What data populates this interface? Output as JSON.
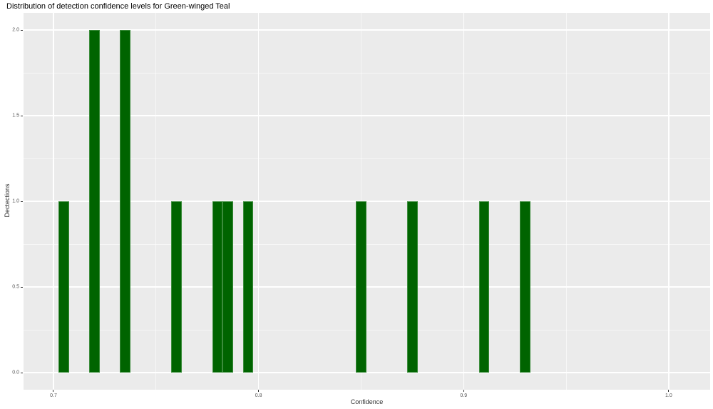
{
  "chart_data": {
    "type": "bar",
    "subtype": "histogram",
    "title": "Distribution of detection confidence levels for Green-winged Teal",
    "xlabel": "Confidence",
    "ylabel": "Dectections",
    "bin_width": 0.005,
    "bins": [
      {
        "center": 0.705,
        "count": 1
      },
      {
        "center": 0.72,
        "count": 2
      },
      {
        "center": 0.735,
        "count": 2
      },
      {
        "center": 0.76,
        "count": 1
      },
      {
        "center": 0.78,
        "count": 1
      },
      {
        "center": 0.785,
        "count": 1
      },
      {
        "center": 0.795,
        "count": 1
      },
      {
        "center": 0.85,
        "count": 1
      },
      {
        "center": 0.875,
        "count": 1
      },
      {
        "center": 0.91,
        "count": 1
      },
      {
        "center": 0.93,
        "count": 1
      }
    ],
    "x_ticks": [
      {
        "value": 0.7,
        "label": "0.7"
      },
      {
        "value": 0.8,
        "label": "0.8"
      },
      {
        "value": 0.9,
        "label": "0.9"
      },
      {
        "value": 1.0,
        "label": "1.0"
      }
    ],
    "y_ticks": [
      {
        "value": 0.0,
        "label": "0.0"
      },
      {
        "value": 0.5,
        "label": "0.5"
      },
      {
        "value": 1.0,
        "label": "1.0"
      },
      {
        "value": 1.5,
        "label": "1.5"
      },
      {
        "value": 2.0,
        "label": "2.0"
      }
    ],
    "x_minor_ticks": [
      0.75,
      0.85,
      0.95
    ],
    "y_minor_ticks": [
      0.25,
      0.75,
      1.25,
      1.75
    ],
    "xlim": [
      0.6854,
      1.0202
    ],
    "ylim": [
      -0.1,
      2.1
    ],
    "grid": "on",
    "legend_position": "none",
    "colors": {
      "bar_fill": "#006400",
      "bar_edge": "#3c8c3c",
      "panel_bg": "#ebebeb",
      "grid": "#ffffff",
      "tick_label": "#555555",
      "axis_title": "#333333",
      "title": "#000000",
      "tick_mark": "#333333"
    }
  }
}
